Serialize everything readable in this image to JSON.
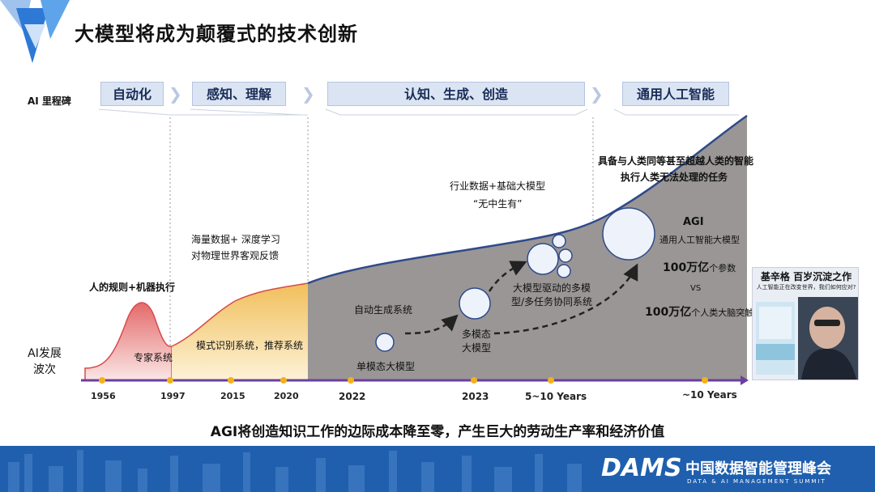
{
  "title": "大模型将成为颠覆式的技术创新",
  "row_labels": {
    "milestones": "AI 里程碑",
    "waves": "AI发展波次"
  },
  "stages": [
    "自动化",
    "感知、理解",
    "认知、生成、创造",
    "通用人工智能"
  ],
  "years": [
    "1956",
    "1997",
    "2015",
    "2020",
    "2022",
    "2023",
    "5~10 Years",
    "~10 Years"
  ],
  "annotations": {
    "rules": "人的规则+机器执行",
    "expert": "专家系统",
    "pattern": "模式识别系统，推荐系统",
    "massive_data": "海量数据+ 深度学习",
    "feedback": "对物理世界客观反馈",
    "industry": "行业数据+基础大模型",
    "from_nothing": "“无中生有”",
    "auto_gen": "自动生成系统",
    "single_modal": "单模态大模型",
    "multi_modal": "多模态大模型",
    "multi_model": "大模型驱动的多模型/多任务协同系统",
    "agi_desc1": "具备与人类同等甚至超越人类的智能",
    "agi_desc2": "执行人类无法处理的任务",
    "agi": "AGI",
    "agi_model": "通用人工智能大模型",
    "params_num": "100万亿",
    "params_unit": "个参数",
    "vs": "VS",
    "synapse_num": "100万亿",
    "synapse_unit": "个人类大脑突触"
  },
  "bottom_text": "AGI将创造知识工作的边际成本降至零，产生巨大的劳动生产率和经济价值",
  "book": {
    "title": "基辛格 百岁沉淀之作",
    "subtitle": "人工智能正在改变世界，我们如何应对?"
  },
  "footer": {
    "brand": "DAMS",
    "brand_cn": "中国数据智能管理峰会",
    "brand_en": "DATA & AI MANAGEMENT SUMMIT"
  },
  "colors": {
    "accent": "#1f5fae",
    "curve": "#2e4a8a",
    "timeline": "#6b3fa0",
    "gray_area": "#9a9696",
    "red": "#e07070",
    "gold": "#f0c66a"
  }
}
